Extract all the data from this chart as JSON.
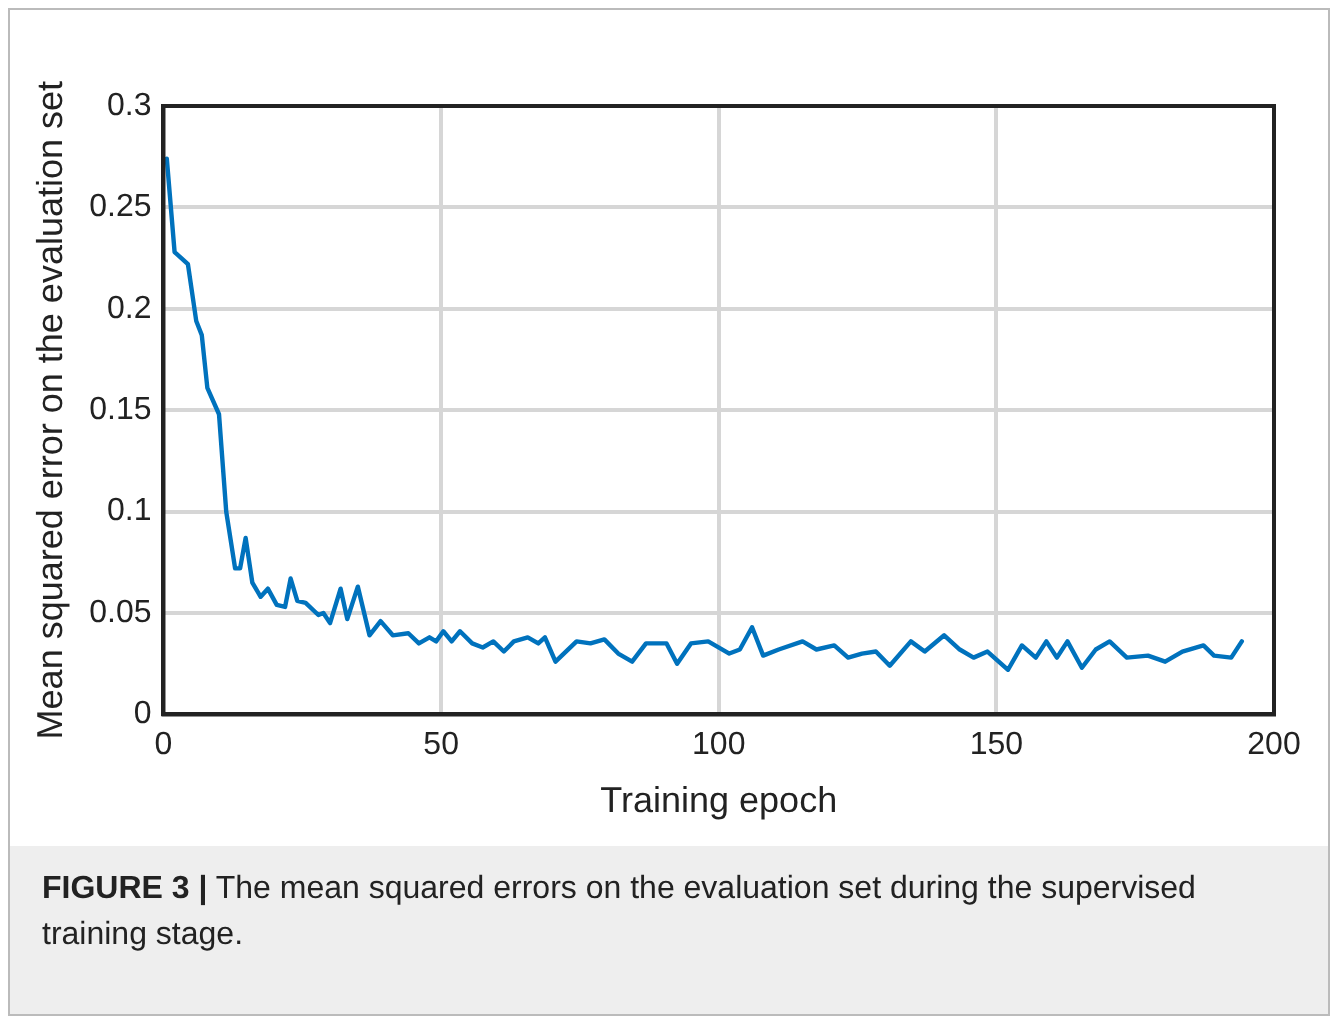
{
  "chart_data": {
    "type": "line",
    "xlabel": "Training epoch",
    "ylabel": "Mean squared error on the evaluation set",
    "x": [
      0.6,
      2,
      4.4,
      5.9,
      6.9,
      7.9,
      10,
      11.3,
      12.9,
      13.8,
      14.8,
      16,
      17.5,
      18.8,
      20.4,
      21.9,
      22.9,
      24.1,
      25.6,
      27.9,
      28.8,
      30,
      31.9,
      33.1,
      35,
      37.1,
      39.1,
      41.3,
      44.1,
      46,
      47.9,
      49.1,
      50.4,
      51.9,
      53.4,
      55.6,
      57.5,
      59.4,
      61.3,
      63.1,
      65.6,
      67.5,
      68.7,
      70.6,
      74.4,
      76.9,
      79.4,
      81.9,
      84.4,
      86.9,
      90.6,
      92.5,
      95,
      98.1,
      101.9,
      103.8,
      106,
      108,
      110.8,
      115.1,
      117.6,
      120.8,
      123.3,
      125.8,
      128.3,
      130.8,
      134.6,
      137.1,
      140.6,
      143.4,
      145.9,
      148.4,
      152.1,
      154.6,
      157.1,
      159,
      160.9,
      162.8,
      165.4,
      167.9,
      170.4,
      173.5,
      177.3,
      180.4,
      183.5,
      187.3,
      189.2,
      192.3,
      194.2
    ],
    "series": [
      {
        "color": "#0072bd",
        "values": [
          0.274,
          0.228,
          0.222,
          0.194,
          0.187,
          0.161,
          0.148,
          0.1,
          0.072,
          0.072,
          0.087,
          0.065,
          0.058,
          0.062,
          0.054,
          0.053,
          0.067,
          0.056,
          0.055,
          0.049,
          0.05,
          0.045,
          0.062,
          0.047,
          0.063,
          0.039,
          0.046,
          0.039,
          0.04,
          0.035,
          0.038,
          0.036,
          0.041,
          0.036,
          0.041,
          0.035,
          0.033,
          0.036,
          0.031,
          0.036,
          0.038,
          0.035,
          0.038,
          0.026,
          0.036,
          0.035,
          0.037,
          0.03,
          0.026,
          0.035,
          0.035,
          0.025,
          0.035,
          0.036,
          0.03,
          0.032,
          0.043,
          0.029,
          0.032,
          0.036,
          0.032,
          0.034,
          0.028,
          0.03,
          0.031,
          0.024,
          0.036,
          0.031,
          0.039,
          0.032,
          0.028,
          0.031,
          0.022,
          0.034,
          0.028,
          0.036,
          0.028,
          0.036,
          0.023,
          0.032,
          0.036,
          0.028,
          0.029,
          0.026,
          0.031,
          0.034,
          0.029,
          0.028,
          0.036
        ]
      }
    ],
    "xlim": [
      0,
      200
    ],
    "xticks": [
      0,
      50,
      100,
      150,
      200
    ],
    "ylim": [
      0,
      0.3
    ],
    "yticks": [
      0,
      0.05,
      0.1,
      0.15,
      0.2,
      0.25,
      0.3
    ],
    "grid": true,
    "legend": false,
    "marker": "none",
    "line_style": "solid",
    "annotations": [
      "FIGURE 3 | The mean squared errors on the evaluation set during the supervised training stage."
    ]
  }
}
